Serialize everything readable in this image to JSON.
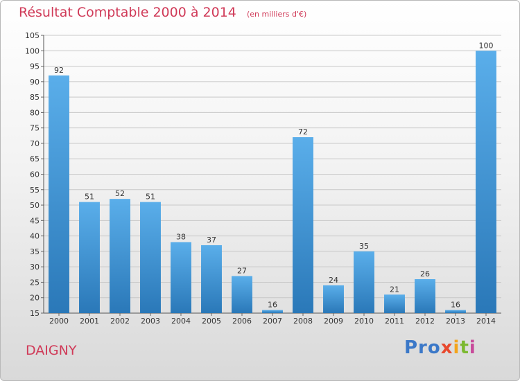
{
  "header": {
    "title": "Résultat Comptable 2000 à 2014",
    "subtitle": "(en milliers d'€)"
  },
  "footer": {
    "commune": "DAIGNY",
    "logo": [
      "Pro",
      "x",
      "i",
      "t",
      "i"
    ]
  },
  "colors": {
    "bar_light": "#5aaeea",
    "bar_dark": "#2a78b8",
    "title": "#d03a58"
  },
  "chart_data": {
    "type": "bar",
    "title": "Résultat Comptable 2000 à 2014",
    "subtitle": "(en milliers d'€)",
    "categories": [
      "2000",
      "2001",
      "2002",
      "2003",
      "2004",
      "2005",
      "2006",
      "2007",
      "2008",
      "2009",
      "2010",
      "2011",
      "2012",
      "2013",
      "2014"
    ],
    "values": [
      92,
      51,
      52,
      51,
      38,
      37,
      27,
      16,
      72,
      24,
      35,
      21,
      26,
      16,
      100
    ],
    "ylim": [
      15,
      105
    ],
    "yticks": [
      15,
      20,
      25,
      30,
      35,
      40,
      45,
      50,
      55,
      60,
      65,
      70,
      75,
      80,
      85,
      90,
      95,
      100,
      105
    ],
    "grid": true,
    "xlabel": "",
    "ylabel": ""
  }
}
